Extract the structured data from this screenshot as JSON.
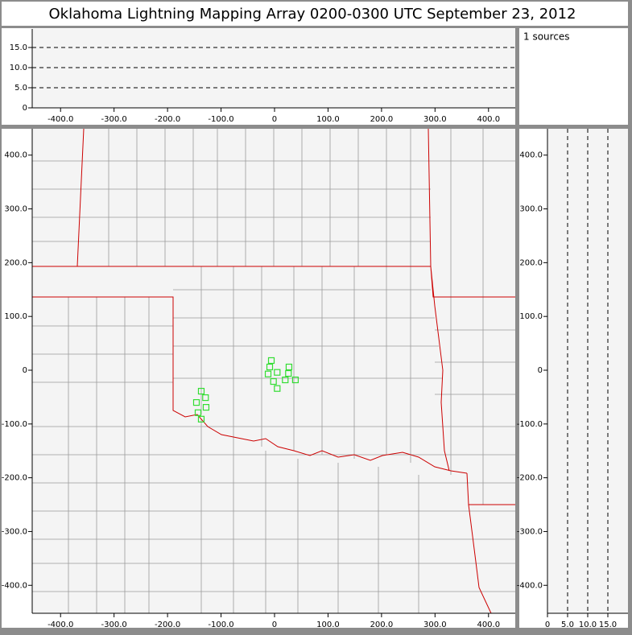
{
  "title": "Oklahoma Lightning Mapping Array   0200-0300 UTC  September 23, 2012",
  "sources_label": "1 sources",
  "chart_data": [
    {
      "type": "scatter",
      "xlim": [
        -453,
        450
      ],
      "xticks": [
        {
          "value": -400,
          "label": "-400.0"
        },
        {
          "value": -300,
          "label": "-300.0"
        },
        {
          "value": -200,
          "label": "-200.0"
        },
        {
          "value": -100,
          "label": "-100.0"
        },
        0,
        {
          "value": 100,
          "label": "100.0"
        },
        {
          "value": 200,
          "label": "200.0"
        },
        {
          "value": 300,
          "label": "300.0"
        },
        {
          "value": 400,
          "label": "400.0"
        }
      ],
      "ylim": [
        0,
        19.6
      ],
      "yticks": [
        0,
        {
          "value": 5,
          "label": "5.0"
        },
        {
          "value": 10,
          "label": "10.0"
        },
        {
          "value": 15,
          "label": "15.0"
        }
      ],
      "grid": "y"
    },
    {
      "type": "scatter",
      "xlim": [
        -453,
        450
      ],
      "xticks": [
        {
          "value": -400,
          "label": "-400.0"
        },
        {
          "value": -300,
          "label": "-300.0"
        },
        {
          "value": -200,
          "label": "-200.0"
        },
        {
          "value": -100,
          "label": "-100.0"
        },
        0,
        {
          "value": 100,
          "label": "100.0"
        },
        {
          "value": 200,
          "label": "200.0"
        },
        {
          "value": 300,
          "label": "300.0"
        },
        {
          "value": 400,
          "label": "400.0"
        }
      ],
      "ylim": [
        -452,
        449
      ],
      "yticks": [
        {
          "value": 400,
          "label": "400.0"
        },
        {
          "value": 300,
          "label": "300.0"
        },
        {
          "value": 200,
          "label": "200.0"
        },
        {
          "value": 100,
          "label": "100.0"
        },
        0,
        {
          "value": -100,
          "label": "-100.0"
        },
        {
          "value": -200,
          "label": "-200.0"
        },
        {
          "value": -300,
          "label": "-300.0"
        },
        {
          "value": -400,
          "label": "-400.0"
        }
      ],
      "color": "#33dd33",
      "x": [
        -6,
        -9,
        -12,
        5,
        27,
        26,
        20,
        39,
        -2,
        5,
        -137,
        -129,
        -146,
        -128,
        -143,
        -137
      ],
      "values": [
        18,
        6,
        -7,
        -4,
        6,
        -6,
        -18,
        -18,
        -21,
        -34,
        -39,
        -51,
        -60,
        -69,
        -79,
        -91
      ]
    },
    {
      "type": "scatter",
      "xlim": [
        0,
        20
      ],
      "xticks": [
        0,
        {
          "value": 5,
          "label": "5.0"
        },
        {
          "value": 10,
          "label": "10.0"
        },
        {
          "value": 15,
          "label": "15.0"
        }
      ],
      "ylim": [
        -452,
        449
      ],
      "yticks": [
        {
          "value": 400,
          "label": "400.0"
        },
        {
          "value": 300,
          "label": "300.0"
        },
        {
          "value": 200,
          "label": "200.0"
        },
        {
          "value": 100,
          "label": "100.0"
        },
        0,
        {
          "value": -100,
          "label": "-100.0"
        },
        {
          "value": -200,
          "label": "-200.0"
        },
        {
          "value": -300,
          "label": "-300.0"
        },
        {
          "value": -400,
          "label": "-400.0"
        }
      ],
      "grid": "x"
    }
  ]
}
